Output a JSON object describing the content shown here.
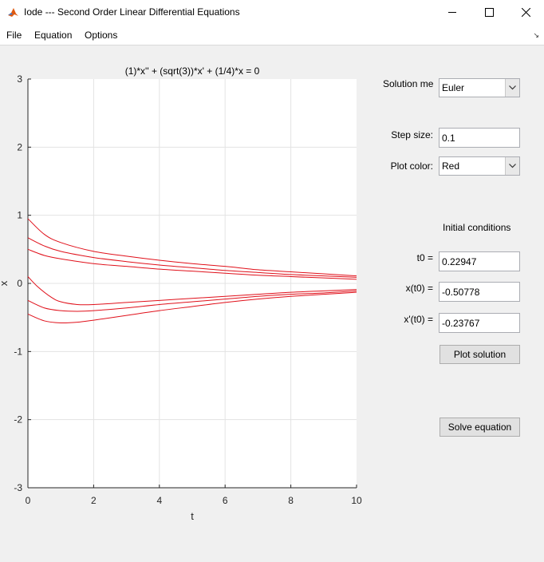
{
  "window": {
    "title": "Iode --- Second Order Linear Differential Equations"
  },
  "menu": {
    "file": "File",
    "equation": "Equation",
    "options": "Options"
  },
  "plot": {
    "title": "(1)*x'' + (sqrt(3))*x' + (1/4)*x = 0",
    "xlabel": "t",
    "ylabel": "x",
    "xticks": [
      "0",
      "2",
      "4",
      "6",
      "8",
      "10"
    ],
    "yticks": [
      "3",
      "2",
      "1",
      "0",
      "-1",
      "-2",
      "-3"
    ]
  },
  "controls": {
    "solution_method_label": "Solution method:",
    "solution_method_value": "Euler",
    "step_size_label": "Step size:",
    "step_size_value": "0.1",
    "plot_color_label": "Plot color:",
    "plot_color_value": "Red",
    "initial_conditions_label": "Initial conditions",
    "t0_label": "t0 =",
    "t0_value": "0.22947",
    "x0_label": "x(t0) =",
    "x0_value": "-0.50778",
    "xp0_label": "x'(t0) =",
    "xp0_value": "-0.23767",
    "plot_solution_label": "Plot solution",
    "solve_equation_label": "Solve equation"
  },
  "colors": {
    "curve": "#e0101a",
    "grid": "#e3e3e3",
    "axis": "#262626"
  },
  "chart_data": {
    "type": "line",
    "title": "(1)*x'' + (sqrt(3))*x' + (1/4)*x = 0",
    "xlabel": "t",
    "ylabel": "x",
    "xlim": [
      0,
      10
    ],
    "ylim": [
      -3,
      3
    ],
    "grid": true,
    "series": [
      {
        "x": [
          0,
          0.5,
          1,
          2,
          3,
          4,
          5,
          6,
          7,
          8,
          9,
          10
        ],
        "y": [
          0.95,
          0.72,
          0.6,
          0.47,
          0.4,
          0.34,
          0.29,
          0.25,
          0.2,
          0.17,
          0.14,
          0.11
        ]
      },
      {
        "x": [
          0,
          0.5,
          1,
          2,
          3,
          4,
          5,
          6,
          7,
          8,
          9,
          10
        ],
        "y": [
          0.67,
          0.55,
          0.47,
          0.38,
          0.32,
          0.27,
          0.23,
          0.19,
          0.16,
          0.13,
          0.11,
          0.09
        ]
      },
      {
        "x": [
          0,
          0.5,
          1,
          2,
          3,
          4,
          5,
          6,
          7,
          8,
          9,
          10
        ],
        "y": [
          0.5,
          0.41,
          0.36,
          0.29,
          0.25,
          0.21,
          0.18,
          0.15,
          0.12,
          0.1,
          0.08,
          0.06
        ]
      },
      {
        "x": [
          0,
          0.3,
          0.7,
          1,
          1.5,
          2,
          3,
          4,
          5,
          6,
          7,
          8,
          9,
          10
        ],
        "y": [
          0.1,
          -0.05,
          -0.2,
          -0.27,
          -0.31,
          -0.31,
          -0.28,
          -0.25,
          -0.22,
          -0.19,
          -0.16,
          -0.13,
          -0.11,
          -0.09
        ]
      },
      {
        "x": [
          0,
          0.5,
          1,
          1.5,
          2,
          3,
          4,
          5,
          6,
          7,
          8,
          9,
          10
        ],
        "y": [
          -0.25,
          -0.36,
          -0.4,
          -0.41,
          -0.4,
          -0.36,
          -0.31,
          -0.27,
          -0.23,
          -0.19,
          -0.16,
          -0.14,
          -0.11
        ]
      },
      {
        "x": [
          0,
          0.5,
          1,
          1.5,
          2,
          3,
          4,
          5,
          6,
          7,
          8,
          9,
          10
        ],
        "y": [
          -0.45,
          -0.55,
          -0.58,
          -0.57,
          -0.54,
          -0.47,
          -0.4,
          -0.34,
          -0.28,
          -0.23,
          -0.19,
          -0.16,
          -0.13
        ]
      }
    ]
  }
}
